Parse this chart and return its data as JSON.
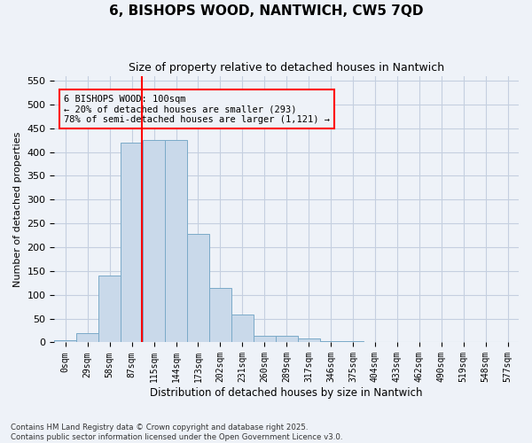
{
  "title_line1": "6, BISHOPS WOOD, NANTWICH, CW5 7QD",
  "title_line2": "Size of property relative to detached houses in Nantwich",
  "xlabel": "Distribution of detached houses by size in Nantwich",
  "ylabel": "Number of detached properties",
  "footnote": "Contains HM Land Registry data © Crown copyright and database right 2025.\nContains public sector information licensed under the Open Government Licence v3.0.",
  "bin_labels": [
    "0sqm",
    "29sqm",
    "58sqm",
    "87sqm",
    "115sqm",
    "144sqm",
    "173sqm",
    "202sqm",
    "231sqm",
    "260sqm",
    "289sqm",
    "317sqm",
    "346sqm",
    "375sqm",
    "404sqm",
    "433sqm",
    "462sqm",
    "490sqm",
    "519sqm",
    "548sqm",
    "577sqm"
  ],
  "bar_values": [
    4,
    20,
    140,
    420,
    425,
    425,
    227,
    115,
    58,
    13,
    13,
    8,
    2,
    2,
    1,
    0,
    0,
    0,
    0,
    0,
    0
  ],
  "bar_color": "#c9d9ea",
  "bar_edgecolor": "#7aaac8",
  "grid_color": "#c5cfe0",
  "background_color": "#eef2f8",
  "vline_x": 3.45,
  "vline_color": "red",
  "annotation_text": "6 BISHOPS WOOD: 100sqm\n← 20% of detached houses are smaller (293)\n78% of semi-detached houses are larger (1,121) →",
  "annotation_box_color": "red",
  "ylim": [
    0,
    560
  ],
  "yticks": [
    0,
    50,
    100,
    150,
    200,
    250,
    300,
    350,
    400,
    450,
    500,
    550
  ]
}
